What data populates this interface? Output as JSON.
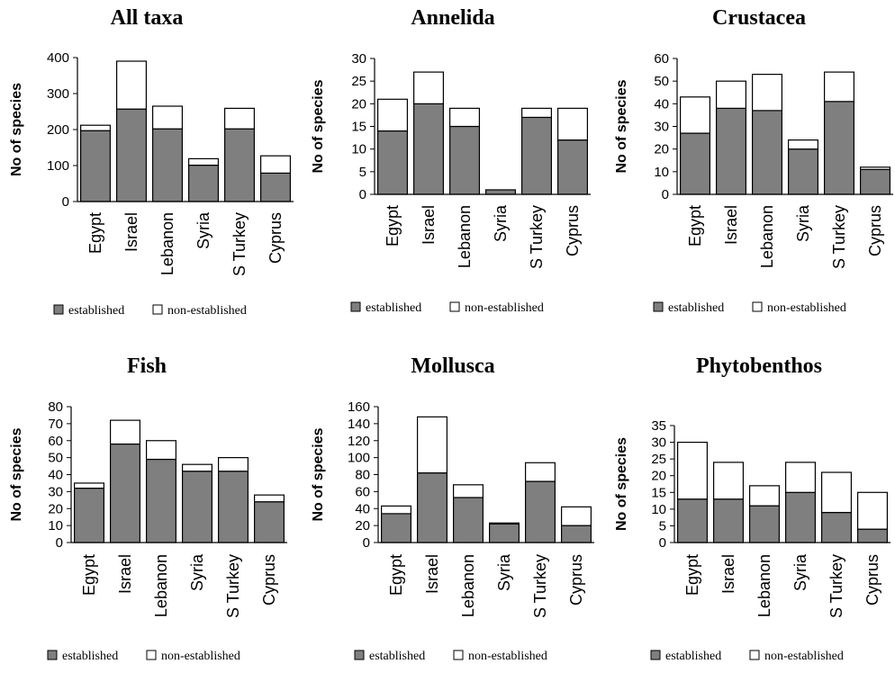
{
  "colors": {
    "established": "#7f7f7f",
    "non_established": "#ffffff",
    "stroke": "#000000"
  },
  "chart_data": [
    {
      "type": "bar",
      "stacked": true,
      "title": "All taxa",
      "ylabel": "No of species",
      "ylim": [
        0,
        400
      ],
      "yticks": [
        0,
        100,
        200,
        300,
        400
      ],
      "categories": [
        "Egypt",
        "Israel",
        "Lebanon",
        "Syria",
        "S Turkey",
        "Cyprus"
      ],
      "series": [
        {
          "name": "established",
          "values": [
            197,
            257,
            202,
            101,
            202,
            79
          ]
        },
        {
          "name": "non-established",
          "values": [
            15,
            133,
            63,
            18,
            57,
            48
          ]
        }
      ]
    },
    {
      "type": "bar",
      "stacked": true,
      "title": "Annelida",
      "ylabel": "No of species",
      "ylim": [
        0,
        30
      ],
      "yticks": [
        0,
        5,
        10,
        15,
        20,
        25,
        30
      ],
      "categories": [
        "Egypt",
        "Israel",
        "Lebanon",
        "Syria",
        "S Turkey",
        "Cyprus"
      ],
      "series": [
        {
          "name": "established",
          "values": [
            14,
            20,
            15,
            1,
            17,
            12
          ]
        },
        {
          "name": "non-established",
          "values": [
            7,
            7,
            4,
            0,
            2,
            7
          ]
        }
      ]
    },
    {
      "type": "bar",
      "stacked": true,
      "title": "Crustacea",
      "ylabel": "No of species",
      "ylim": [
        0,
        60
      ],
      "yticks": [
        0,
        10,
        20,
        30,
        40,
        50,
        60
      ],
      "categories": [
        "Egypt",
        "Israel",
        "Lebanon",
        "Syria",
        "S Turkey",
        "Cyprus"
      ],
      "series": [
        {
          "name": "established",
          "values": [
            27,
            38,
            37,
            20,
            41,
            11
          ]
        },
        {
          "name": "non-established",
          "values": [
            16,
            12,
            16,
            4,
            13,
            1
          ]
        }
      ]
    },
    {
      "type": "bar",
      "stacked": true,
      "title": "Fish",
      "ylabel": "No of species",
      "ylim": [
        0,
        80
      ],
      "yticks": [
        0,
        10,
        20,
        30,
        40,
        50,
        60,
        70,
        80
      ],
      "categories": [
        "Egypt",
        "Israel",
        "Lebanon",
        "Syria",
        "S Turkey",
        "Cyprus"
      ],
      "series": [
        {
          "name": "established",
          "values": [
            32,
            58,
            49,
            42,
            42,
            24
          ]
        },
        {
          "name": "non-established",
          "values": [
            3,
            14,
            11,
            4,
            8,
            4
          ]
        }
      ]
    },
    {
      "type": "bar",
      "stacked": true,
      "title": "Mollusca",
      "ylabel": "No of species",
      "ylim": [
        0,
        160
      ],
      "yticks": [
        0,
        20,
        40,
        60,
        80,
        100,
        120,
        140,
        160
      ],
      "categories": [
        "Egypt",
        "Israel",
        "Lebanon",
        "Syria",
        "S Turkey",
        "Cyprus"
      ],
      "series": [
        {
          "name": "established",
          "values": [
            34,
            82,
            53,
            22,
            72,
            20
          ]
        },
        {
          "name": "non-established",
          "values": [
            9,
            66,
            15,
            1,
            22,
            22
          ]
        }
      ]
    },
    {
      "type": "bar",
      "stacked": true,
      "title": "Phytobenthos",
      "ylabel": "No of species",
      "ylim": [
        0,
        35
      ],
      "yticks": [
        0,
        5,
        10,
        15,
        20,
        25,
        30,
        35
      ],
      "categories": [
        "Egypt",
        "Israel",
        "Lebanon",
        "Syria",
        "S Turkey",
        "Cyprus"
      ],
      "series": [
        {
          "name": "established",
          "values": [
            13,
            13,
            11,
            15,
            9,
            4
          ]
        },
        {
          "name": "non-established",
          "values": [
            17,
            11,
            6,
            9,
            12,
            11
          ]
        }
      ]
    }
  ]
}
